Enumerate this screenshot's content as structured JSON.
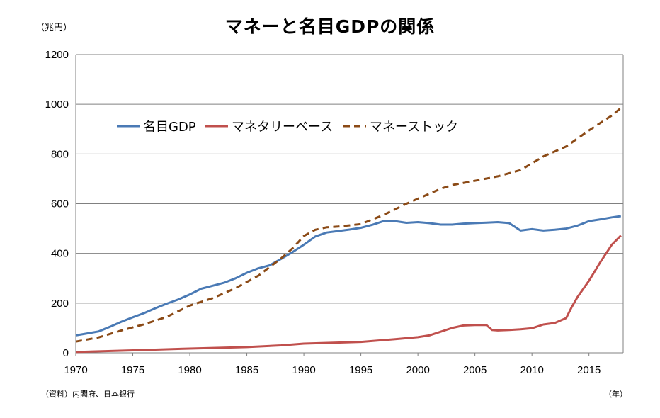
{
  "chart_data": {
    "type": "line",
    "title": "マネーと名目GDPの関係",
    "unit_label": "（兆円）",
    "x_unit_label": "（年）",
    "source": "（資料）内閣府、日本銀行",
    "xlim": [
      1970,
      2018
    ],
    "ylim": [
      0,
      1200
    ],
    "xticks": [
      "1970",
      "1975",
      "1980",
      "1985",
      "1990",
      "1995",
      "2000",
      "2005",
      "2010",
      "2015"
    ],
    "yticks": [
      "0",
      "200",
      "400",
      "600",
      "800",
      "1000",
      "1200"
    ],
    "grid": true,
    "legend_position": "upper-left",
    "series": [
      {
        "name": "名目GDP",
        "color": "#4a7ab5",
        "style": "solid",
        "points": [
          [
            1970,
            70
          ],
          [
            1971,
            78
          ],
          [
            1972,
            86
          ],
          [
            1973,
            105
          ],
          [
            1974,
            125
          ],
          [
            1975,
            143
          ],
          [
            1976,
            160
          ],
          [
            1977,
            180
          ],
          [
            1978,
            198
          ],
          [
            1979,
            215
          ],
          [
            1980,
            235
          ],
          [
            1981,
            258
          ],
          [
            1982,
            270
          ],
          [
            1983,
            282
          ],
          [
            1984,
            300
          ],
          [
            1985,
            322
          ],
          [
            1986,
            340
          ],
          [
            1987,
            352
          ],
          [
            1988,
            378
          ],
          [
            1989,
            405
          ],
          [
            1990,
            435
          ],
          [
            1991,
            468
          ],
          [
            1992,
            484
          ],
          [
            1993,
            490
          ],
          [
            1994,
            496
          ],
          [
            1995,
            503
          ],
          [
            1996,
            515
          ],
          [
            1997,
            530
          ],
          [
            1998,
            530
          ],
          [
            1999,
            523
          ],
          [
            2000,
            526
          ],
          [
            2001,
            522
          ],
          [
            2002,
            516
          ],
          [
            2003,
            516
          ],
          [
            2004,
            520
          ],
          [
            2005,
            522
          ],
          [
            2006,
            524
          ],
          [
            2007,
            526
          ],
          [
            2008,
            522
          ],
          [
            2009,
            492
          ],
          [
            2010,
            498
          ],
          [
            2011,
            492
          ],
          [
            2012,
            495
          ],
          [
            2013,
            500
          ],
          [
            2014,
            512
          ],
          [
            2015,
            530
          ],
          [
            2016,
            537
          ],
          [
            2017,
            545
          ],
          [
            2017.8,
            550
          ]
        ]
      },
      {
        "name": "マネタリーベース",
        "color": "#c0504d",
        "style": "solid",
        "points": [
          [
            1970,
            3
          ],
          [
            1975,
            10
          ],
          [
            1980,
            17
          ],
          [
            1985,
            23
          ],
          [
            1988,
            30
          ],
          [
            1990,
            37
          ],
          [
            1995,
            44
          ],
          [
            1998,
            55
          ],
          [
            2000,
            63
          ],
          [
            2001,
            70
          ],
          [
            2002,
            85
          ],
          [
            2003,
            100
          ],
          [
            2004,
            110
          ],
          [
            2005,
            112
          ],
          [
            2006,
            112
          ],
          [
            2006.5,
            92
          ],
          [
            2007,
            90
          ],
          [
            2008,
            92
          ],
          [
            2009,
            95
          ],
          [
            2010,
            99
          ],
          [
            2011,
            114
          ],
          [
            2012,
            120
          ],
          [
            2013,
            140
          ],
          [
            2013.5,
            185
          ],
          [
            2014,
            225
          ],
          [
            2015,
            290
          ],
          [
            2016,
            365
          ],
          [
            2017,
            435
          ],
          [
            2017.8,
            472
          ]
        ]
      },
      {
        "name": "マネーストック",
        "color": "#8b4a16",
        "style": "dashed",
        "points": [
          [
            1970,
            45
          ],
          [
            1972,
            62
          ],
          [
            1974,
            90
          ],
          [
            1976,
            115
          ],
          [
            1978,
            145
          ],
          [
            1980,
            190
          ],
          [
            1982,
            220
          ],
          [
            1984,
            260
          ],
          [
            1986,
            310
          ],
          [
            1988,
            380
          ],
          [
            1989,
            420
          ],
          [
            1990,
            470
          ],
          [
            1991,
            495
          ],
          [
            1992,
            505
          ],
          [
            1993,
            508
          ],
          [
            1995,
            518
          ],
          [
            1997,
            555
          ],
          [
            1999,
            600
          ],
          [
            2001,
            640
          ],
          [
            2002,
            660
          ],
          [
            2003,
            675
          ],
          [
            2005,
            692
          ],
          [
            2007,
            710
          ],
          [
            2009,
            735
          ],
          [
            2011,
            790
          ],
          [
            2013,
            830
          ],
          [
            2015,
            895
          ],
          [
            2017,
            955
          ],
          [
            2017.8,
            985
          ]
        ]
      }
    ]
  }
}
